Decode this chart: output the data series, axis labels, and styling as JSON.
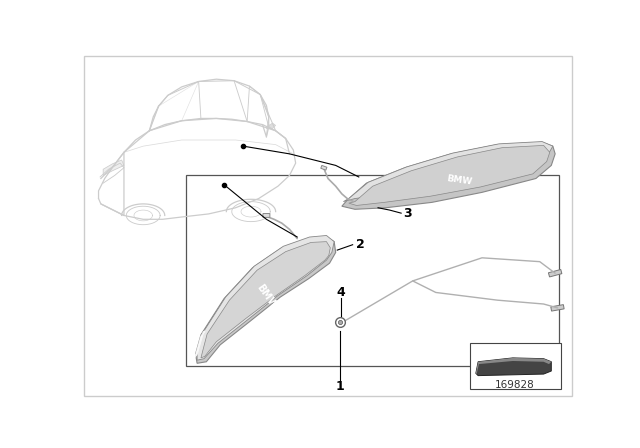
{
  "background_color": "#ffffff",
  "diagram_id": "169828",
  "line_color": "#aaaaaa",
  "line_color_dark": "#888888",
  "sill_face_color": "#c8c8c8",
  "sill_top_color": "#e8e8e8",
  "sill_edge_color": "#999999",
  "sill_inner_color": "#d5d5d5",
  "car_line_color": "#cccccc",
  "arrow_color": "#222222",
  "label_color": "#111111"
}
